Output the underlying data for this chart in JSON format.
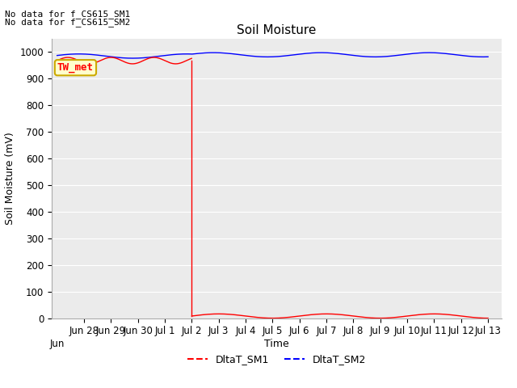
{
  "title": "Soil Moisture",
  "ylabel": "Soil Moisture (mV)",
  "xlabel": "Time",
  "no_data_text_1": "No data for f_CS615_SM1",
  "no_data_text_2": "No data for f_CS615_SM2",
  "legend_label": "TW_met",
  "legend_entries": [
    "DltaT_SM1",
    "DltaT_SM2"
  ],
  "background_color": "#ebebeb",
  "ylim": [
    0,
    1050
  ],
  "yticks": [
    0,
    100,
    200,
    300,
    400,
    500,
    600,
    700,
    800,
    900,
    1000
  ],
  "sm1_pre_drop_mean": 968,
  "sm1_pre_drop_amp": 12,
  "sm1_pre_drop_freq": 2.5,
  "sm1_post_drop_value": 8,
  "sm1_post_drop_amp": 8,
  "sm1_post_drop_freq": 1.0,
  "sm2_mean": 985,
  "sm2_amp": 8,
  "sm2_freq": 1.0,
  "drop_day": 5,
  "title_fontsize": 11,
  "axis_label_fontsize": 9,
  "tick_fontsize": 8.5,
  "nodata_fontsize": 8,
  "legend_fontsize": 9
}
